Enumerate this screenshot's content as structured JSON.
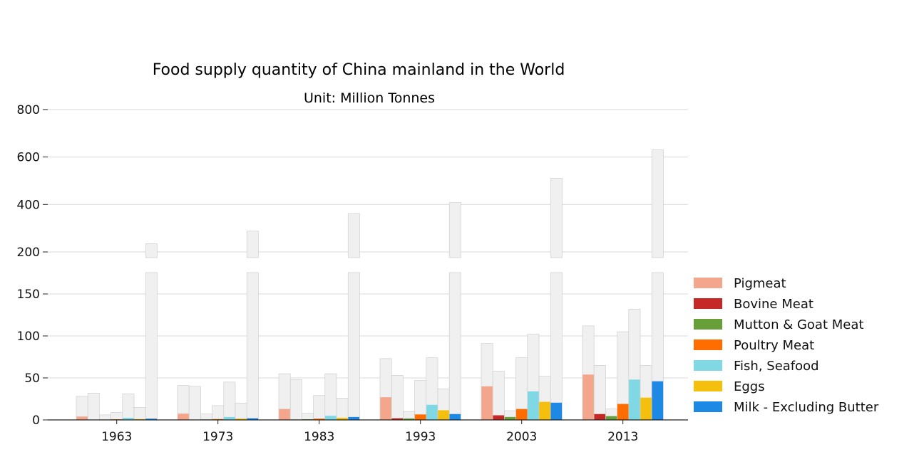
{
  "chart_data": {
    "type": "bar",
    "title": "Food supply quantity of China mainland in the World",
    "subtitle": "Unit: Million Tonnes",
    "categories": [
      "1963",
      "1973",
      "1983",
      "1993",
      "2003",
      "2013"
    ],
    "y_axis": {
      "broken": true,
      "lower_ticks": [
        "0",
        "50",
        "100",
        "150"
      ],
      "upper_ticks": [
        "200",
        "400",
        "600",
        "800"
      ],
      "lower_range": [
        0,
        175
      ],
      "upper_range": [
        180,
        800
      ]
    },
    "legend_position": "right",
    "grid": true,
    "series": [
      {
        "name": "Pigmeat",
        "color": "#f4a68c",
        "china": [
          4,
          7.5,
          13,
          27,
          40,
          54
        ],
        "world": [
          28,
          41,
          55,
          73,
          91,
          112
        ]
      },
      {
        "name": "Bovine Meat",
        "color": "#c62828",
        "china": [
          0.3,
          0.4,
          0.5,
          2,
          5.5,
          7
        ],
        "world": [
          32,
          40,
          48,
          53,
          58,
          65
        ]
      },
      {
        "name": "Mutton & Goat Meat",
        "color": "#689f38",
        "china": [
          0.5,
          0.6,
          0.8,
          1.7,
          3.5,
          4.5
        ],
        "world": [
          6,
          7,
          8,
          10,
          11,
          13
        ]
      },
      {
        "name": "Poultry Meat",
        "color": "#ff6d00",
        "china": [
          0.8,
          1,
          1.5,
          6.5,
          13,
          19
        ],
        "world": [
          9,
          17,
          29,
          47,
          74,
          105
        ]
      },
      {
        "name": "Fish, Seafood",
        "color": "#80d8e4",
        "china": [
          2.5,
          3.5,
          5,
          18,
          34,
          48
        ],
        "world": [
          31,
          45,
          55,
          74,
          102,
          132
        ]
      },
      {
        "name": "Eggs",
        "color": "#f5bf0e",
        "china": [
          1,
          1.5,
          2.5,
          11.5,
          21.5,
          26.5
        ],
        "world": [
          15,
          20,
          26,
          37,
          52,
          65
        ]
      },
      {
        "name": "Milk - Excluding Butter",
        "color": "#1e88e5",
        "china": [
          1.5,
          2,
          3.5,
          7,
          20.5,
          46
        ],
        "world": [
          235,
          288,
          362,
          408,
          511,
          630
        ]
      }
    ]
  }
}
